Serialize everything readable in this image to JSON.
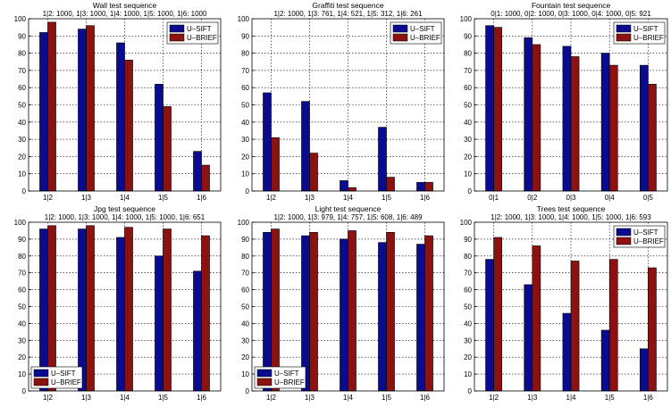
{
  "colors": {
    "sift": "#0b0b8f",
    "brief": "#8c1111",
    "grid": "#000000",
    "axis": "#000000",
    "background": "#ffffff"
  },
  "chart_data": [
    {
      "type": "bar",
      "title": "Wall test sequence",
      "subtitle": "1|2: 1000, 1|3: 1000, 1|4: 1000, 1|5: 1000, 1|6: 1000",
      "xlabel": "",
      "ylabel": "",
      "categories": [
        "1|2",
        "1|3",
        "1|4",
        "1|5",
        "1|6"
      ],
      "series": [
        {
          "name": "U–SIFT",
          "values": [
            92,
            94,
            86,
            62,
            23
          ]
        },
        {
          "name": "U–BRIEF",
          "values": [
            98,
            96,
            76,
            49,
            15
          ]
        }
      ],
      "ylim": [
        0,
        100
      ],
      "yticks": [
        0,
        10,
        20,
        30,
        40,
        50,
        60,
        70,
        80,
        90,
        100
      ],
      "grid": true,
      "legend_position": "top-right"
    },
    {
      "type": "bar",
      "title": "Graffiti test sequence",
      "subtitle": "1|2: 1000, 1|3: 761, 1|4: 521, 1|5: 312, 1|6: 261",
      "xlabel": "",
      "ylabel": "",
      "categories": [
        "1|2",
        "1|3",
        "1|4",
        "1|5",
        "1|6"
      ],
      "series": [
        {
          "name": "U–SIFT",
          "values": [
            57,
            52,
            6,
            37,
            5
          ]
        },
        {
          "name": "U–BRIEF",
          "values": [
            31,
            22,
            2,
            8,
            5
          ]
        }
      ],
      "ylim": [
        0,
        100
      ],
      "yticks": [
        0,
        10,
        20,
        30,
        40,
        50,
        60,
        70,
        80,
        90,
        100
      ],
      "grid": true,
      "legend_position": "top-right"
    },
    {
      "type": "bar",
      "title": "Fountain test sequence",
      "subtitle": "0|1: 1000, 0|2: 1000, 0|3: 1000, 0|4: 1000, 0|5: 921",
      "xlabel": "",
      "ylabel": "",
      "categories": [
        "0|1",
        "0|2",
        "0|3",
        "0|4",
        "0|5"
      ],
      "series": [
        {
          "name": "U–SIFT",
          "values": [
            96,
            89,
            84,
            80,
            73
          ]
        },
        {
          "name": "U–BRIEF",
          "values": [
            95,
            85,
            78,
            73,
            62
          ]
        }
      ],
      "ylim": [
        0,
        100
      ],
      "yticks": [
        0,
        10,
        20,
        30,
        40,
        50,
        60,
        70,
        80,
        90,
        100
      ],
      "grid": true,
      "legend_position": "top-right"
    },
    {
      "type": "bar",
      "title": "Jpg test sequence",
      "subtitle": "1|2: 1000, 1|3: 1000, 1|4: 1000, 1|5: 1000, 1|6: 651",
      "xlabel": "",
      "ylabel": "",
      "categories": [
        "1|2",
        "1|3",
        "1|4",
        "1|5",
        "1|6"
      ],
      "series": [
        {
          "name": "U–SIFT",
          "values": [
            96,
            96,
            91,
            80,
            71
          ]
        },
        {
          "name": "U–BRIEF",
          "values": [
            98,
            98,
            97,
            96,
            92
          ]
        }
      ],
      "ylim": [
        0,
        100
      ],
      "yticks": [
        0,
        10,
        20,
        30,
        40,
        50,
        60,
        70,
        80,
        90,
        100
      ],
      "grid": true,
      "legend_position": "bottom-left"
    },
    {
      "type": "bar",
      "title": "Light test sequence",
      "subtitle": "1|2: 1000, 1|3: 979, 1|4: 757, 1|5: 608, 1|6: 489",
      "xlabel": "",
      "ylabel": "",
      "categories": [
        "1|2",
        "1|3",
        "1|4",
        "1|5",
        "1|6"
      ],
      "series": [
        {
          "name": "U–SIFT",
          "values": [
            94,
            92,
            90,
            88,
            87
          ]
        },
        {
          "name": "U–BRIEF",
          "values": [
            96,
            94,
            95,
            94,
            92
          ]
        }
      ],
      "ylim": [
        0,
        100
      ],
      "yticks": [
        0,
        10,
        20,
        30,
        40,
        50,
        60,
        70,
        80,
        90,
        100
      ],
      "grid": true,
      "legend_position": "bottom-left"
    },
    {
      "type": "bar",
      "title": "Trees test sequence",
      "subtitle": "1|2: 1000, 1|3: 1000, 1|4: 1000, 1|5: 1000, 1|6: 593",
      "xlabel": "",
      "ylabel": "",
      "categories": [
        "1|2",
        "1|3",
        "1|4",
        "1|5",
        "1|6"
      ],
      "series": [
        {
          "name": "U–SIFT",
          "values": [
            78,
            63,
            46,
            36,
            25
          ]
        },
        {
          "name": "U–BRIEF",
          "values": [
            91,
            86,
            77,
            78,
            73
          ]
        }
      ],
      "ylim": [
        0,
        100
      ],
      "yticks": [
        0,
        10,
        20,
        30,
        40,
        50,
        60,
        70,
        80,
        90,
        100
      ],
      "grid": true,
      "legend_position": "top-right"
    }
  ]
}
